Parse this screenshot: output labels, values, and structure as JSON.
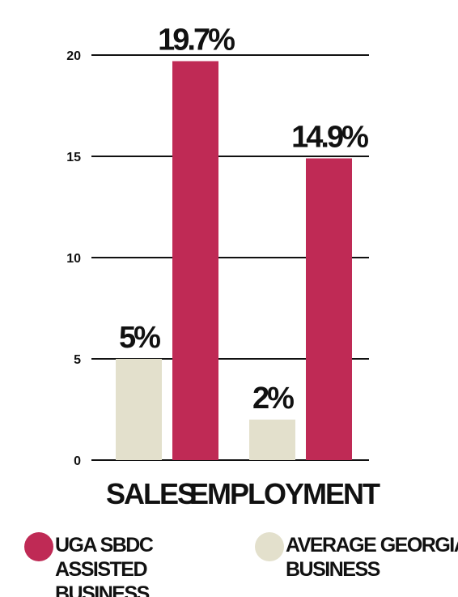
{
  "chart_data": {
    "type": "bar",
    "categories": [
      "SALES",
      "EMPLOYMENT"
    ],
    "series": [
      {
        "name": "AVERAGE GEORGIA BUSINESS",
        "color": "#e3e0cc",
        "values": [
          5,
          2
        ],
        "value_labels": [
          "5%",
          "2%"
        ]
      },
      {
        "name": "UGA SBDC ASSISTED BUSINESS",
        "color": "#bf2a55",
        "values": [
          19.7,
          14.9
        ],
        "value_labels": [
          "19.7%",
          "14.9%"
        ]
      }
    ],
    "ylim": [
      0,
      20
    ],
    "yticks": [
      0,
      5,
      10,
      15,
      20
    ],
    "grid": true
  }
}
